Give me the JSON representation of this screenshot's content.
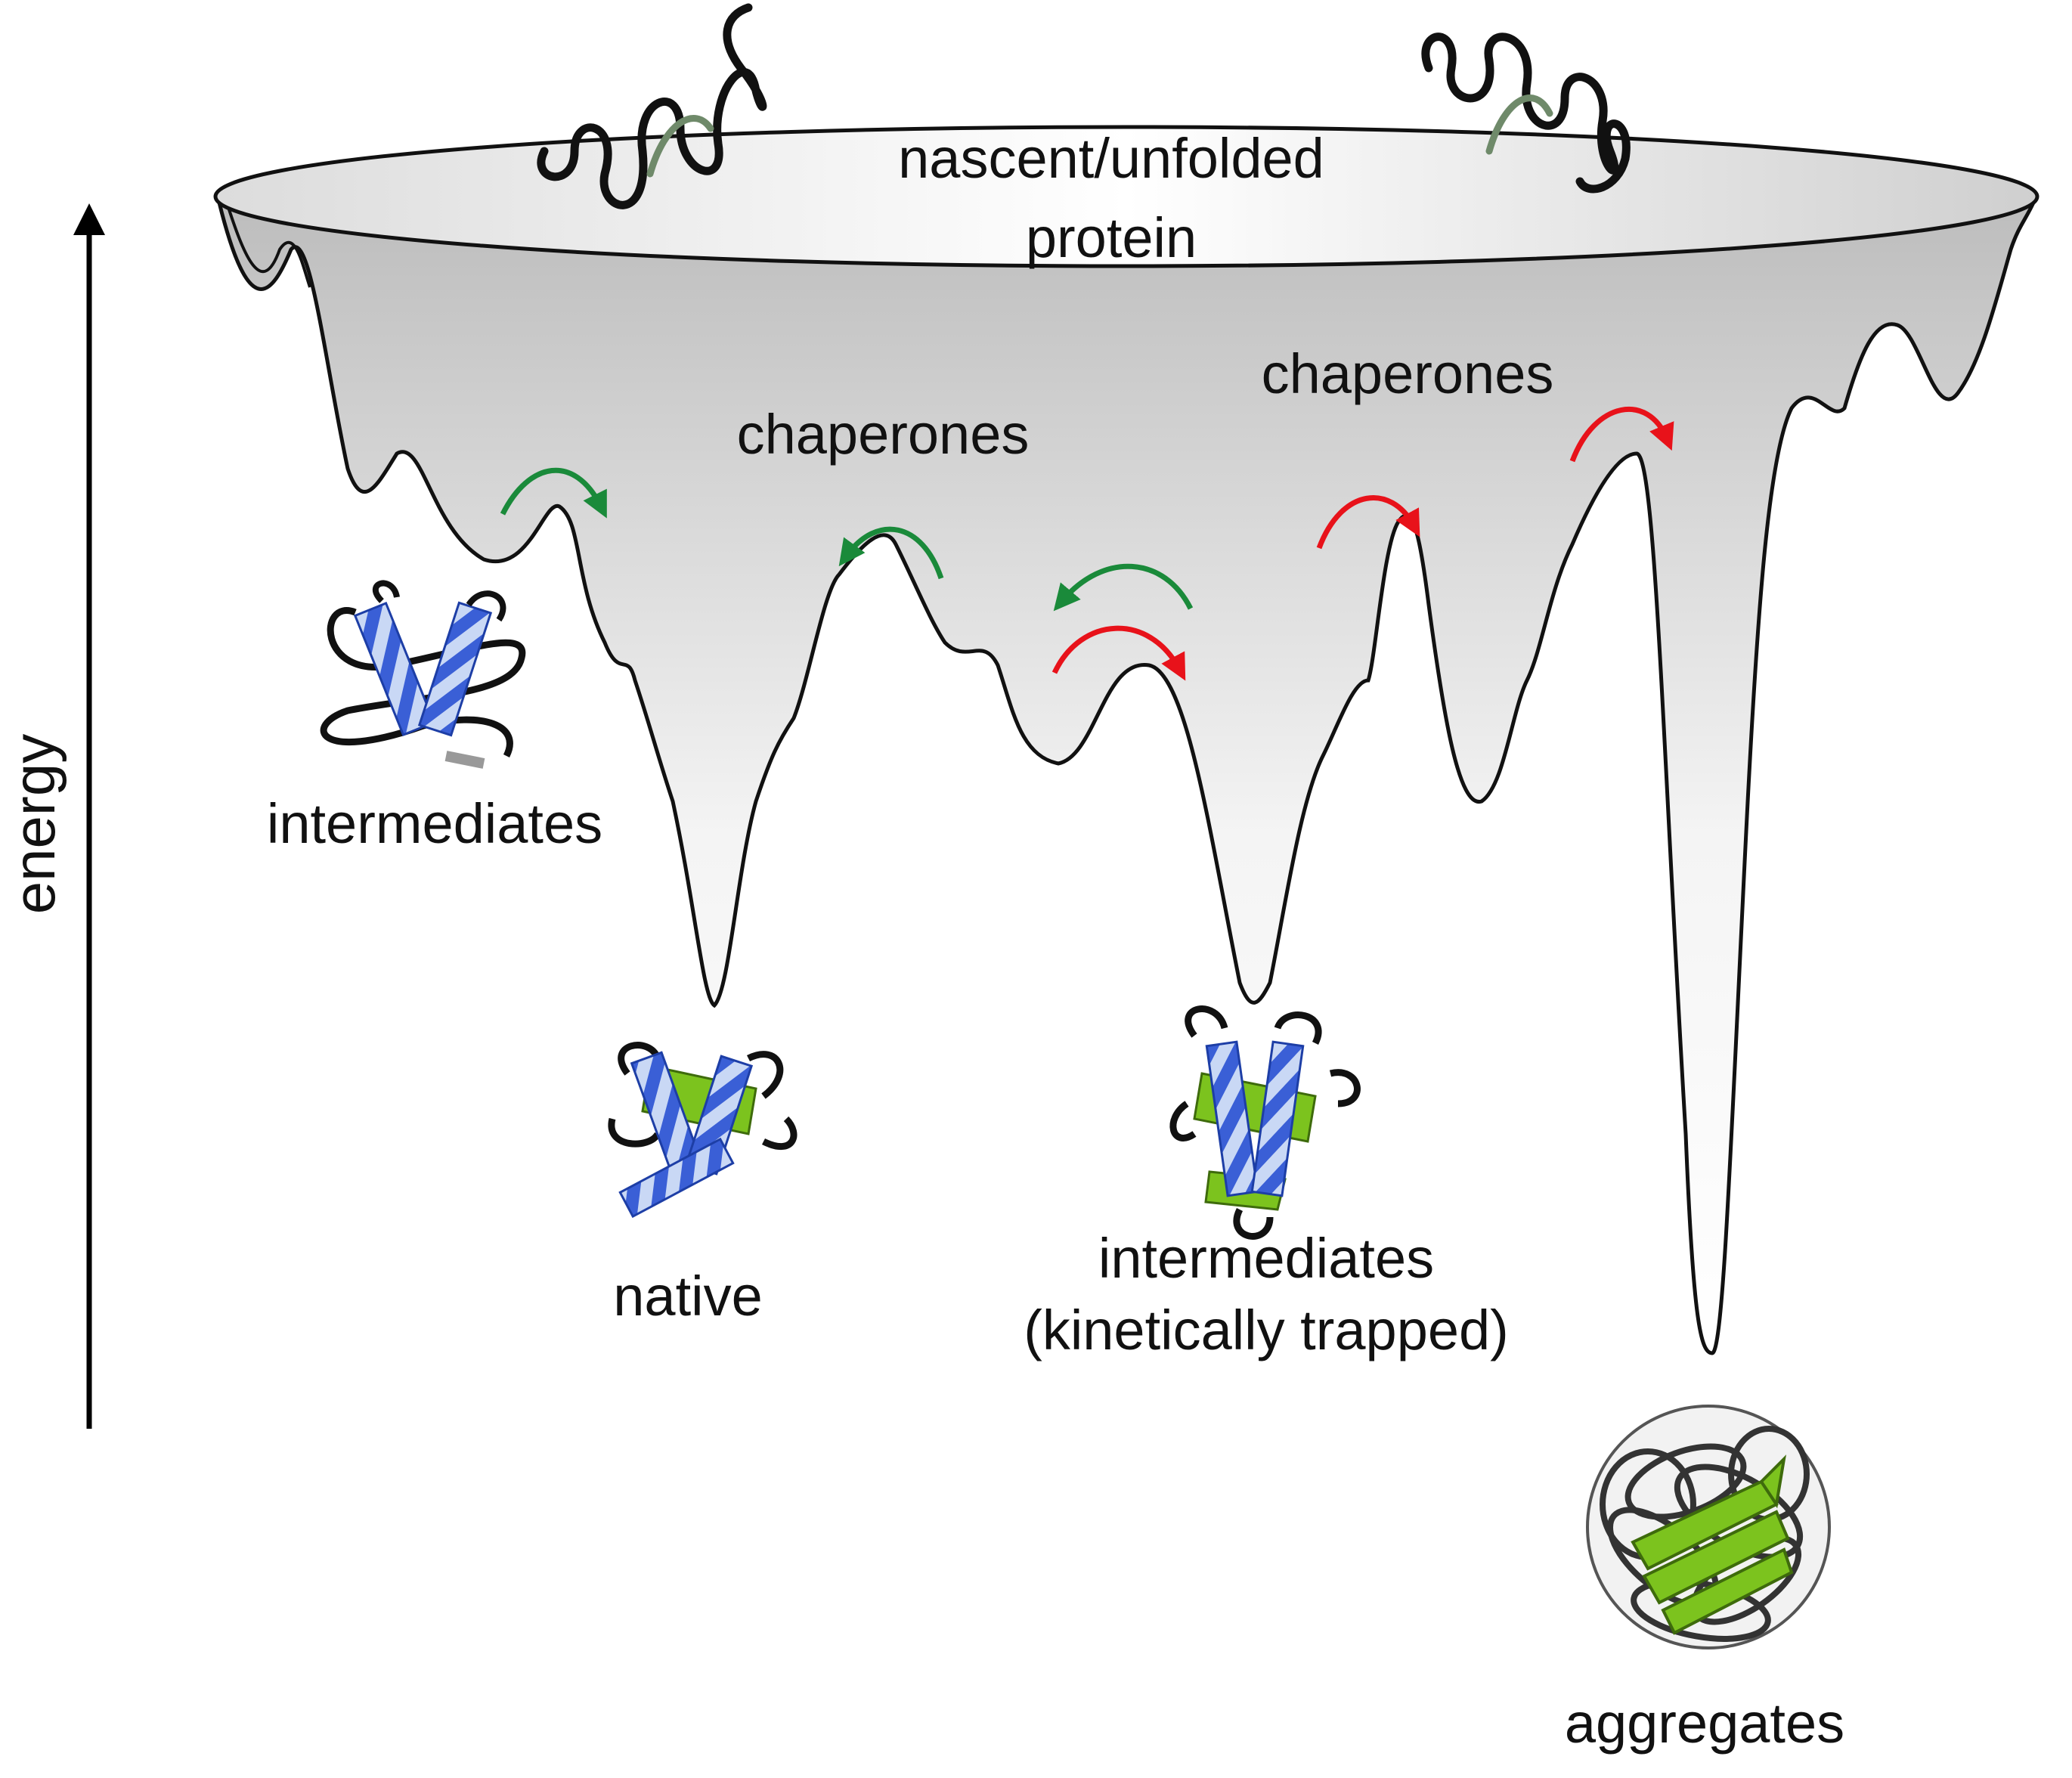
{
  "labels": {
    "top_line1": "nascent/unfolded",
    "top_line2": "protein",
    "chaperones_left": "chaperones",
    "chaperones_right": "chaperones",
    "intermediates": "intermediates",
    "native": "native",
    "trapped_line1": "intermediates",
    "trapped_line2": "(kinetically trapped)",
    "aggregates": "aggregates",
    "y_axis": "energy"
  },
  "colors": {
    "green_arrow": "#1a8a3a",
    "red_arrow": "#e8121a",
    "helix_blue": "#3a5fd6",
    "helix_light": "#c9d8f5",
    "sheet_green": "#7cc31e",
    "outline": "#111111"
  }
}
